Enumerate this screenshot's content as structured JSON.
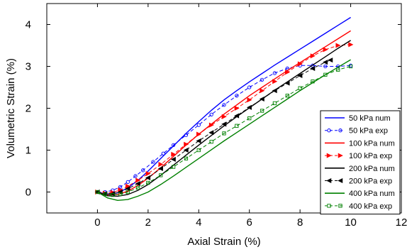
{
  "chart_data": {
    "type": "line",
    "title": "",
    "xlabel": "Axial Strain (%)",
    "ylabel": "Volumetric Strain (%)",
    "xlim": [
      -2,
      12
    ],
    "ylim": [
      -0.5,
      4.5
    ],
    "xticks": [
      0,
      2,
      4,
      6,
      8,
      10,
      12
    ],
    "yticks": [
      0,
      1,
      2,
      3,
      4
    ],
    "grid": false,
    "legend_position": "bottom-right",
    "series": [
      {
        "name": "50 kPa num",
        "color": "#0000ff",
        "style": "solid",
        "marker": "none",
        "x": [
          0,
          0.4,
          0.8,
          1.2,
          1.6,
          2,
          2.5,
          3,
          3.5,
          4,
          4.5,
          5,
          5.5,
          6,
          6.5,
          7,
          7.5,
          8,
          8.5,
          9,
          9.5,
          10
        ],
        "y": [
          0,
          -0.05,
          -0.02,
          0.1,
          0.28,
          0.5,
          0.8,
          1.1,
          1.4,
          1.68,
          1.95,
          2.2,
          2.42,
          2.63,
          2.83,
          3.03,
          3.22,
          3.41,
          3.6,
          3.79,
          3.98,
          4.17
        ]
      },
      {
        "name": "50 kPa exp",
        "color": "#0000ff",
        "style": "dashed",
        "marker": "circle",
        "x": [
          0,
          0.3,
          0.6,
          0.9,
          1.2,
          1.5,
          1.8,
          2.2,
          2.6,
          3,
          3.5,
          4,
          4.5,
          5,
          5.5,
          6,
          6.5,
          7,
          7.5,
          8,
          8.5,
          9,
          9.5,
          10
        ],
        "y": [
          0,
          0,
          0.04,
          0.12,
          0.24,
          0.38,
          0.52,
          0.72,
          0.92,
          1.12,
          1.36,
          1.6,
          1.85,
          2.08,
          2.3,
          2.5,
          2.68,
          2.84,
          2.95,
          3.02,
          3.02,
          3.0,
          3.0,
          3.02
        ]
      },
      {
        "name": "100 kPa num",
        "color": "#ff0000",
        "style": "solid",
        "marker": "none",
        "x": [
          0,
          0.4,
          0.8,
          1.2,
          1.6,
          2,
          2.5,
          3,
          3.5,
          4,
          4.5,
          5,
          5.5,
          6,
          6.5,
          7,
          7.5,
          8,
          8.5,
          9,
          9.5,
          10
        ],
        "y": [
          0,
          -0.07,
          -0.06,
          0.02,
          0.16,
          0.33,
          0.58,
          0.85,
          1.12,
          1.38,
          1.62,
          1.86,
          2.08,
          2.3,
          2.5,
          2.7,
          2.9,
          3.09,
          3.28,
          3.47,
          3.66,
          3.85
        ]
      },
      {
        "name": "100 kPa exp",
        "color": "#ff0000",
        "style": "dashed",
        "marker": "triangle-right",
        "x": [
          0,
          0.3,
          0.6,
          0.9,
          1.2,
          1.6,
          2,
          2.5,
          3,
          3.5,
          4,
          4.5,
          5,
          5.5,
          6,
          6.5,
          7,
          7.5,
          8,
          8.5,
          9,
          9.5,
          10
        ],
        "y": [
          0,
          -0.03,
          -0.01,
          0.05,
          0.14,
          0.28,
          0.44,
          0.66,
          0.9,
          1.14,
          1.38,
          1.6,
          1.8,
          2.0,
          2.2,
          2.42,
          2.64,
          2.86,
          3.06,
          3.25,
          3.4,
          3.5,
          3.52
        ]
      },
      {
        "name": "200 kPa num",
        "color": "#000000",
        "style": "solid",
        "marker": "none",
        "x": [
          0,
          0.4,
          0.8,
          1.2,
          1.6,
          2,
          2.5,
          3,
          3.5,
          4,
          4.5,
          5,
          5.5,
          6,
          6.5,
          7,
          7.5,
          8,
          8.5,
          9,
          9.5,
          10
        ],
        "y": [
          0,
          -0.09,
          -0.1,
          -0.06,
          0.04,
          0.18,
          0.4,
          0.64,
          0.88,
          1.12,
          1.35,
          1.58,
          1.8,
          2.01,
          2.22,
          2.43,
          2.63,
          2.83,
          3.03,
          3.23,
          3.43,
          3.62
        ]
      },
      {
        "name": "200 kPa exp",
        "color": "#000000",
        "style": "dashed",
        "marker": "triangle-left",
        "x": [
          0,
          0.3,
          0.6,
          0.9,
          1.2,
          1.6,
          2,
          2.5,
          3,
          3.5,
          4,
          4.5,
          5,
          5.5,
          6,
          6.5,
          7,
          7.5,
          8,
          8.5,
          9,
          9.2
        ],
        "y": [
          0,
          -0.04,
          -0.04,
          0.0,
          0.08,
          0.2,
          0.34,
          0.56,
          0.78,
          1.0,
          1.22,
          1.42,
          1.62,
          1.82,
          2.02,
          2.22,
          2.42,
          2.6,
          2.78,
          2.95,
          3.1,
          3.15
        ]
      },
      {
        "name": "400 kPa num",
        "color": "#008000",
        "style": "solid",
        "marker": "none",
        "x": [
          0,
          0.4,
          0.8,
          1.2,
          1.6,
          2,
          2.5,
          3,
          3.5,
          4,
          4.5,
          5,
          5.5,
          6,
          6.5,
          7,
          7.5,
          8,
          8.5,
          9,
          9.5,
          10
        ],
        "y": [
          0,
          -0.14,
          -0.2,
          -0.18,
          -0.1,
          0.0,
          0.18,
          0.38,
          0.59,
          0.8,
          1.01,
          1.22,
          1.42,
          1.62,
          1.82,
          2.02,
          2.22,
          2.42,
          2.61,
          2.8,
          2.98,
          3.16
        ]
      },
      {
        "name": "400 kPa exp",
        "color": "#008000",
        "style": "dashed",
        "marker": "square",
        "x": [
          0,
          0.3,
          0.6,
          0.9,
          1.2,
          1.6,
          2,
          2.5,
          3,
          3.5,
          4,
          4.5,
          5,
          5.5,
          6,
          6.5,
          7,
          7.5,
          8,
          8.5,
          9,
          9.5,
          10
        ],
        "y": [
          0,
          -0.05,
          -0.07,
          -0.05,
          0.0,
          0.1,
          0.22,
          0.4,
          0.6,
          0.8,
          1.0,
          1.2,
          1.4,
          1.58,
          1.76,
          1.94,
          2.12,
          2.3,
          2.48,
          2.64,
          2.8,
          2.92,
          3.0
        ]
      }
    ]
  }
}
